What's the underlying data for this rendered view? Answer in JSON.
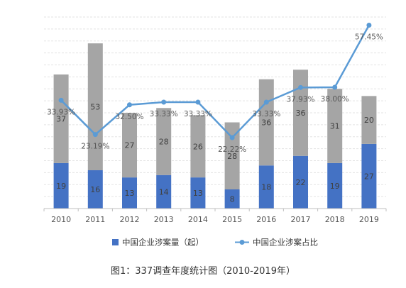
{
  "chart_data": {
    "type": "bar",
    "stacked": true,
    "categories": [
      "2010",
      "2011",
      "2012",
      "2013",
      "2014",
      "2015",
      "2016",
      "2017",
      "2018",
      "2019"
    ],
    "series": [
      {
        "name": "中国企业涉案量（起）",
        "kind": "bar",
        "color": "#4472c4",
        "values": [
          19,
          16,
          13,
          14,
          13,
          8,
          18,
          22,
          19,
          27
        ]
      },
      {
        "name": "",
        "kind": "bar",
        "color": "#a5a5a5",
        "values": [
          37,
          53,
          27,
          28,
          26,
          28,
          36,
          36,
          31,
          20
        ]
      },
      {
        "name": "中国企业涉案占比",
        "kind": "line",
        "color": "#5b9bd5",
        "values": [
          33.93,
          23.19,
          32.5,
          33.33,
          33.33,
          22.22,
          33.33,
          37.93,
          38.0,
          57.45
        ],
        "labels": [
          "33.93%",
          "23.19%",
          "32.50%",
          "33.33%",
          "33.33%",
          "22.22%",
          "33.33%",
          "37.93%",
          "38.00%",
          "57.45%"
        ]
      }
    ],
    "bar_ylim": [
      0,
      80
    ],
    "line_ylim": [
      0,
      60
    ],
    "grid": true,
    "legend": "bottom"
  },
  "caption": "图1：337调查年度统计图（2010-2019年）"
}
